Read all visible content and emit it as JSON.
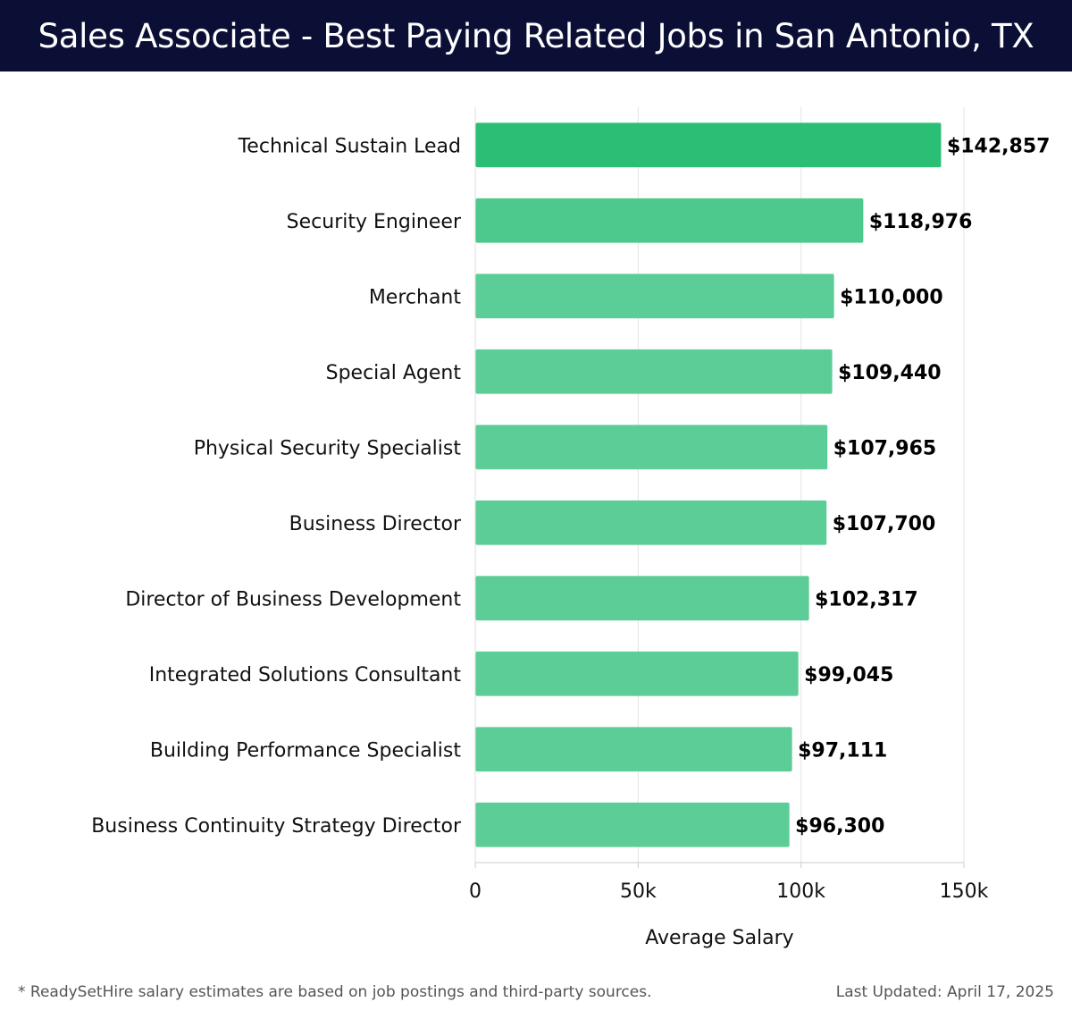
{
  "header": {
    "title": "Sales Associate - Best Paying Related Jobs in San Antonio, TX"
  },
  "chart_data": {
    "type": "bar",
    "orientation": "horizontal",
    "title": "Sales Associate - Best Paying Related Jobs in San Antonio, TX",
    "xlabel": "Average Salary",
    "ylabel": "",
    "xlim": [
      0,
      150000
    ],
    "ticks": [
      {
        "value": 0,
        "label": "0"
      },
      {
        "value": 50000,
        "label": "50k"
      },
      {
        "value": 100000,
        "label": "100k"
      },
      {
        "value": 150000,
        "label": "150k"
      }
    ],
    "categories": [
      "Technical Sustain Lead",
      "Security Engineer",
      "Merchant",
      "Special Agent",
      "Physical Security Specialist",
      "Business Director",
      "Director of Business Development",
      "Integrated Solutions Consultant",
      "Building Performance Specialist",
      "Business Continuity Strategy Director"
    ],
    "values": [
      142857,
      118976,
      110000,
      109440,
      107965,
      107700,
      102317,
      99045,
      97111,
      96300
    ],
    "value_labels": [
      "$142,857",
      "$118,976",
      "$110,000",
      "$109,440",
      "$107,965",
      "$107,700",
      "$102,317",
      "$99,045",
      "$97,111",
      "$96,300"
    ],
    "grid": true,
    "colors": {
      "max": "#2bbf76",
      "min": "#5ccd96"
    }
  },
  "footer": {
    "note": "* ReadySetHire salary estimates are based on job postings and third-party sources.",
    "updated": "Last Updated: April 17, 2025"
  }
}
